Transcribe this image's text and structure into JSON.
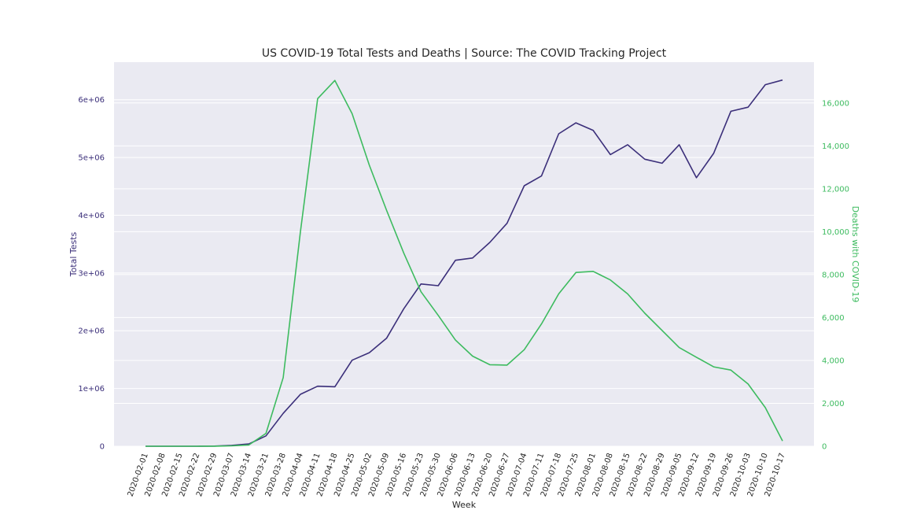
{
  "chart_data": {
    "type": "line",
    "title": "US COVID-19 Total Tests and Deaths | Source: The COVID Tracking Project",
    "xlabel": "Week",
    "ylabel_left": "Total Tests",
    "ylabel_right": "Deaths with COVID-19",
    "grid": true,
    "categories": [
      "2020-02-01",
      "2020-02-08",
      "2020-02-15",
      "2020-02-22",
      "2020-02-29",
      "2020-03-07",
      "2020-03-14",
      "2020-03-21",
      "2020-03-28",
      "2020-04-04",
      "2020-04-11",
      "2020-04-18",
      "2020-04-25",
      "2020-05-02",
      "2020-05-09",
      "2020-05-16",
      "2020-05-23",
      "2020-05-30",
      "2020-06-06",
      "2020-06-13",
      "2020-06-20",
      "2020-06-27",
      "2020-07-04",
      "2020-07-11",
      "2020-07-18",
      "2020-07-25",
      "2020-08-01",
      "2020-08-08",
      "2020-08-15",
      "2020-08-22",
      "2020-08-29",
      "2020-09-05",
      "2020-09-12",
      "2020-09-19",
      "2020-09-26",
      "2020-10-03",
      "2020-10-10",
      "2020-10-17"
    ],
    "y_left": {
      "lim": [
        0,
        6650000
      ],
      "ticks": [
        0,
        1000000,
        2000000,
        3000000,
        4000000,
        5000000,
        6000000
      ],
      "tick_labels": [
        "0",
        "1e+06",
        "2e+06",
        "3e+06",
        "4e+06",
        "5e+06",
        "6e+06"
      ]
    },
    "y_right": {
      "lim": [
        0,
        17900
      ],
      "ticks": [
        0,
        2000,
        4000,
        6000,
        8000,
        10000,
        12000,
        14000,
        16000
      ],
      "tick_labels": [
        "0",
        "2,000",
        "4,000",
        "6,000",
        "8,000",
        "10,000",
        "12,000",
        "14,000",
        "16,000"
      ]
    },
    "series": [
      {
        "axis": "left",
        "color": "#3b2f7a",
        "values": [
          0,
          0,
          0,
          0,
          3000,
          15000,
          40000,
          180000,
          570000,
          900000,
          1040000,
          1030000,
          1490000,
          1620000,
          1870000,
          2380000,
          2810000,
          2780000,
          3220000,
          3260000,
          3530000,
          3860000,
          4510000,
          4680000,
          5410000,
          5600000,
          5470000,
          5050000,
          5220000,
          4970000,
          4900000,
          5220000,
          4650000,
          5070000,
          5800000,
          5870000,
          6260000,
          6340000
        ]
      },
      {
        "axis": "right",
        "color": "#3dbb5f",
        "values": [
          0,
          0,
          0,
          0,
          5,
          20,
          60,
          600,
          3200,
          10000,
          16200,
          17050,
          15500,
          13100,
          11000,
          9000,
          7200,
          6100,
          4950,
          4200,
          3800,
          3780,
          4500,
          5700,
          7100,
          8100,
          8150,
          7750,
          7100,
          6200,
          5400,
          4600,
          4150,
          3700,
          3550,
          2900,
          1800,
          250
        ]
      }
    ]
  }
}
